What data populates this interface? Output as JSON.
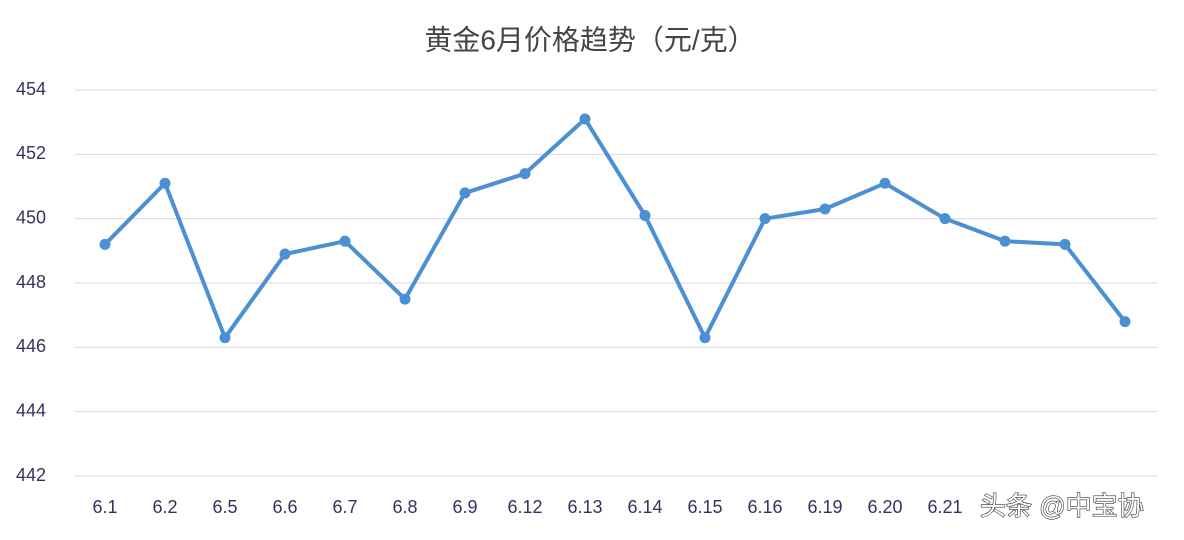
{
  "chart_data": {
    "type": "line",
    "title": "黄金6月价格趋势（元/克）",
    "categories": [
      "6.1",
      "6.2",
      "6.5",
      "6.6",
      "6.7",
      "6.8",
      "6.9",
      "6.12",
      "6.13",
      "6.14",
      "6.15",
      "6.16",
      "6.19",
      "6.20",
      "6.21",
      null,
      null,
      null
    ],
    "series": [
      {
        "name": "price",
        "color": "#4a90d2",
        "values": [
          449.2,
          451.1,
          446.3,
          448.9,
          449.3,
          447.5,
          450.8,
          451.4,
          453.1,
          450.1,
          446.3,
          450.0,
          450.3,
          451.1,
          450.0,
          449.3,
          449.2,
          446.8
        ]
      }
    ],
    "ylim": [
      442,
      454
    ],
    "yticks": [
      442,
      444,
      446,
      448,
      450,
      452,
      454
    ],
    "grid": true,
    "watermark": "头条 @中宝协"
  }
}
